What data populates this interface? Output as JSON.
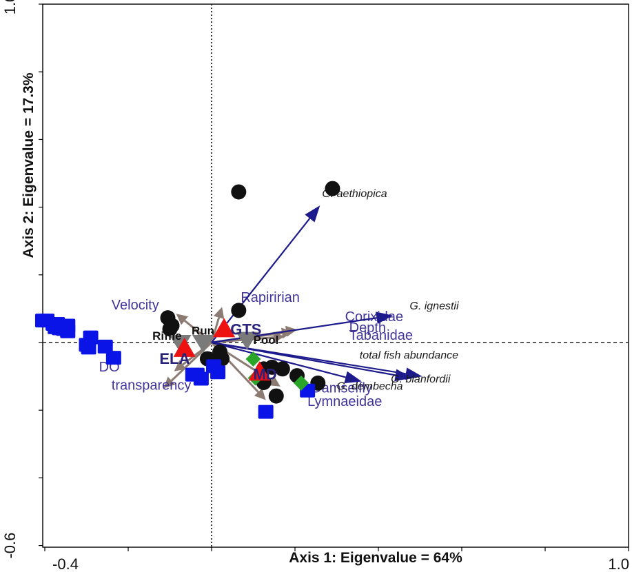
{
  "chart_data": {
    "type": "scatter",
    "title": "",
    "xlabel": "Axis 1: Eigenvalue = 64%",
    "ylabel": "Axis 2: Eigenvalue = 17.3%",
    "xlim": [
      -0.4,
      1.0
    ],
    "ylim": [
      -0.6,
      1.0
    ],
    "x_tick_labels": [
      {
        "value": -0.4,
        "label": "-0.4"
      },
      {
        "value": 1.0,
        "label": "1.0"
      }
    ],
    "y_tick_labels": [
      {
        "value": 1.0,
        "label": "1.0"
      },
      {
        "value": -0.6,
        "label": "-0.6"
      }
    ],
    "grid": false,
    "reference_lines": {
      "x": 0,
      "y": 0
    },
    "colors": {
      "axis_box": "#000000",
      "env_arrow": "#8c7b72",
      "env_label": "#40349a",
      "species_arrow": "#1d1a8c",
      "species_label": "#1a1a1a",
      "site_circle": "#111111",
      "blue_square": "#0a14e6",
      "green_diamond": "#2aa52a",
      "red_triangle": "#ee1111",
      "habitat_triangle": "#7a7a7a"
    },
    "env_arrows": [
      {
        "label": "Velocity",
        "x": -0.085,
        "y": 0.085,
        "label_x": -0.24,
        "label_y": 0.098
      },
      {
        "label": "Rapiririan",
        "x": 0.025,
        "y": 0.105,
        "label_x": 0.07,
        "label_y": 0.12
      },
      {
        "label": "Corixidae",
        "x": 0.205,
        "y": 0.038,
        "label_x": 0.32,
        "label_y": 0.063
      },
      {
        "label": "Depth",
        "x": 0.195,
        "y": 0.032,
        "label_x": 0.33,
        "label_y": 0.031
      },
      {
        "label": "Tabanidae",
        "x": 0.175,
        "y": 0.018,
        "label_x": 0.33,
        "label_y": 0.008
      },
      {
        "label": "DO",
        "x": -0.09,
        "y": -0.085,
        "label_x": -0.27,
        "label_y": -0.086
      },
      {
        "label": "transparency",
        "x": -0.115,
        "y": -0.135,
        "label_x": -0.24,
        "label_y": -0.14
      },
      {
        "label": "Damselfly",
        "x": 0.165,
        "y": -0.13,
        "label_x": 0.24,
        "label_y": -0.148
      },
      {
        "label": "Lymnaeidae",
        "x": 0.13,
        "y": -0.17,
        "label_x": 0.23,
        "label_y": -0.187
      }
    ],
    "species_arrows": [
      {
        "label": "G. aethiopica",
        "x": 0.26,
        "y": 0.405,
        "label_x": 0.265,
        "label_y": 0.43
      },
      {
        "label": "G. ignestii",
        "x": 0.435,
        "y": 0.08,
        "label_x": 0.475,
        "label_y": 0.098
      },
      {
        "label": "total fish abundance",
        "x": 0.505,
        "y": -0.1,
        "label_x": 0.355,
        "label_y": -0.048
      },
      {
        "label": "G. blanfordii",
        "x": 0.48,
        "y": -0.105,
        "label_x": 0.43,
        "label_y": -0.118
      },
      {
        "label": "G. dembecha",
        "x": 0.36,
        "y": -0.115,
        "label_x": 0.3,
        "label_y": -0.14
      }
    ],
    "sites": [
      {
        "label": "GTS",
        "x": 0.03,
        "y": 0.04,
        "label_x": 0.045,
        "label_y": 0.04
      },
      {
        "label": "ELA",
        "x": -0.065,
        "y": -0.018,
        "label_x": -0.125,
        "label_y": -0.047
      },
      {
        "label": "MD",
        "x": 0.115,
        "y": -0.088,
        "label_x": 0.1,
        "label_y": -0.093
      }
    ],
    "habitats": [
      {
        "label": "Riffle",
        "x": -0.075,
        "y": -0.002,
        "label_x": -0.142,
        "label_y": 0.008
      },
      {
        "label": "Run",
        "x": -0.02,
        "y": -0.002,
        "label_x": -0.048,
        "label_y": 0.023
      },
      {
        "label": "Pool",
        "x": 0.085,
        "y": 0.007,
        "label_x": 0.1,
        "label_y": -0.004
      }
    ],
    "circle_points": [
      {
        "x": 0.065,
        "y": 0.445
      },
      {
        "x": 0.29,
        "y": 0.455
      },
      {
        "x": -0.105,
        "y": 0.073
      },
      {
        "x": -0.095,
        "y": 0.05
      },
      {
        "x": -0.1,
        "y": 0.04
      },
      {
        "x": 0.065,
        "y": 0.095
      },
      {
        "x": -0.01,
        "y": -0.048
      },
      {
        "x": 0.02,
        "y": -0.028
      },
      {
        "x": 0.025,
        "y": -0.048
      },
      {
        "x": 0.125,
        "y": -0.078
      },
      {
        "x": 0.145,
        "y": -0.073
      },
      {
        "x": 0.12,
        "y": -0.098
      },
      {
        "x": 0.125,
        "y": -0.118
      },
      {
        "x": 0.155,
        "y": -0.158
      },
      {
        "x": 0.17,
        "y": -0.078
      },
      {
        "x": 0.205,
        "y": -0.098
      },
      {
        "x": 0.255,
        "y": -0.12
      }
    ],
    "square_points": [
      {
        "x": -0.405,
        "y": 0.065
      },
      {
        "x": -0.395,
        "y": 0.065
      },
      {
        "x": -0.38,
        "y": 0.055
      },
      {
        "x": -0.37,
        "y": 0.055
      },
      {
        "x": -0.375,
        "y": 0.045
      },
      {
        "x": -0.365,
        "y": 0.042
      },
      {
        "x": -0.345,
        "y": 0.05
      },
      {
        "x": -0.355,
        "y": 0.04
      },
      {
        "x": -0.345,
        "y": 0.033
      },
      {
        "x": -0.29,
        "y": 0.015
      },
      {
        "x": -0.3,
        "y": -0.007
      },
      {
        "x": -0.295,
        "y": -0.015
      },
      {
        "x": -0.255,
        "y": -0.012
      },
      {
        "x": -0.235,
        "y": -0.045
      },
      {
        "x": -0.045,
        "y": -0.095
      },
      {
        "x": -0.035,
        "y": -0.095
      },
      {
        "x": -0.025,
        "y": -0.107
      },
      {
        "x": 0.005,
        "y": -0.07
      },
      {
        "x": 0.015,
        "y": -0.088
      },
      {
        "x": 0.23,
        "y": -0.142
      },
      {
        "x": 0.13,
        "y": -0.205
      }
    ],
    "diamond_points": [
      {
        "x": 0.1,
        "y": -0.049
      },
      {
        "x": 0.105,
        "y": -0.105
      },
      {
        "x": 0.215,
        "y": -0.12
      }
    ]
  }
}
